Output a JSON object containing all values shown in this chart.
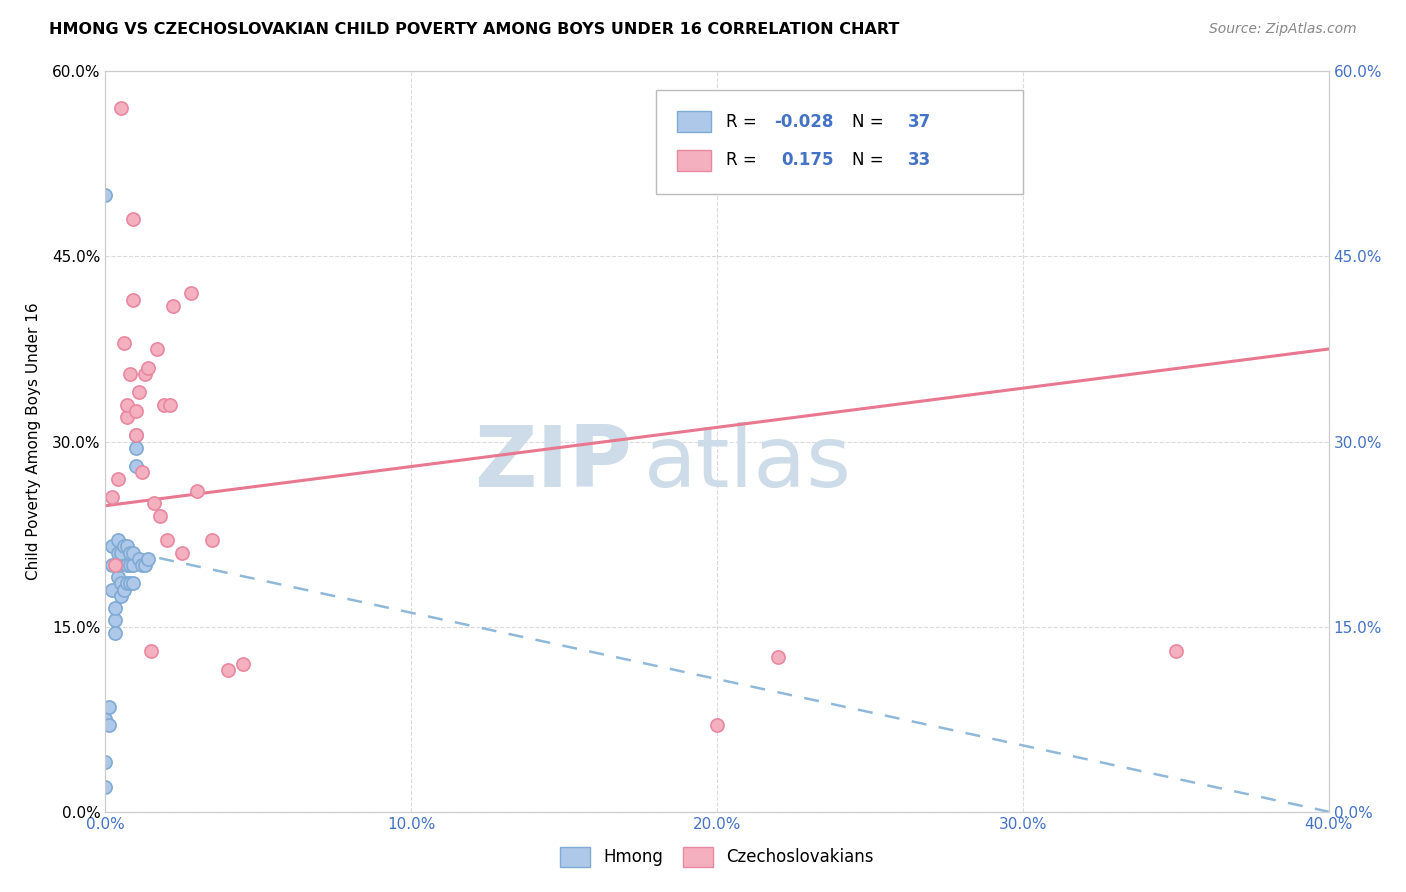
{
  "title": "HMONG VS CZECHOSLOVAKIAN CHILD POVERTY AMONG BOYS UNDER 16 CORRELATION CHART",
  "source": "Source: ZipAtlas.com",
  "ylabel": "Child Poverty Among Boys Under 16",
  "hmong_R": "-0.028",
  "hmong_N": "37",
  "czech_R": "0.175",
  "czech_N": "33",
  "hmong_color": "#adc8e8",
  "hmong_edge_color": "#80aad4",
  "czech_color": "#f5b0c0",
  "czech_edge_color": "#e888a0",
  "hmong_line_color": "#90b8d8",
  "czech_line_color": "#e87890",
  "label_color": "#4472c4",
  "watermark_color": "#cddce8",
  "background_color": "#ffffff",
  "grid_color": "#d8d8d8",
  "hmong_x": [
    0.0,
    0.0,
    0.0,
    0.0,
    0.001,
    0.001,
    0.002,
    0.002,
    0.002,
    0.003,
    0.003,
    0.003,
    0.004,
    0.004,
    0.004,
    0.004,
    0.005,
    0.005,
    0.005,
    0.006,
    0.006,
    0.007,
    0.007,
    0.007,
    0.008,
    0.008,
    0.008,
    0.009,
    0.009,
    0.009,
    0.01,
    0.01,
    0.01,
    0.011,
    0.012,
    0.013,
    0.014
  ],
  "hmong_y": [
    0.02,
    0.04,
    0.075,
    0.5,
    0.07,
    0.085,
    0.18,
    0.2,
    0.215,
    0.145,
    0.155,
    0.165,
    0.19,
    0.2,
    0.21,
    0.22,
    0.175,
    0.185,
    0.21,
    0.18,
    0.215,
    0.185,
    0.2,
    0.215,
    0.185,
    0.2,
    0.21,
    0.185,
    0.2,
    0.21,
    0.28,
    0.295,
    0.305,
    0.205,
    0.2,
    0.2,
    0.205
  ],
  "czech_x": [
    0.002,
    0.003,
    0.004,
    0.005,
    0.006,
    0.007,
    0.007,
    0.008,
    0.009,
    0.009,
    0.01,
    0.01,
    0.011,
    0.012,
    0.013,
    0.014,
    0.015,
    0.016,
    0.017,
    0.018,
    0.019,
    0.02,
    0.021,
    0.022,
    0.025,
    0.028,
    0.03,
    0.035,
    0.04,
    0.045,
    0.2,
    0.22,
    0.35
  ],
  "czech_y": [
    0.255,
    0.2,
    0.27,
    0.57,
    0.38,
    0.32,
    0.33,
    0.355,
    0.415,
    0.48,
    0.305,
    0.325,
    0.34,
    0.275,
    0.355,
    0.36,
    0.13,
    0.25,
    0.375,
    0.24,
    0.33,
    0.22,
    0.33,
    0.41,
    0.21,
    0.42,
    0.26,
    0.22,
    0.115,
    0.12,
    0.07,
    0.125,
    0.13
  ],
  "x_ticks": [
    0.0,
    0.1,
    0.2,
    0.3,
    0.4
  ],
  "y_ticks": [
    0.0,
    0.15,
    0.3,
    0.45,
    0.6
  ],
  "xlim": [
    0.0,
    0.4
  ],
  "ylim": [
    0.0,
    0.6
  ],
  "hmong_line_x0": 0.0,
  "hmong_line_y0": 0.215,
  "hmong_line_x1": 0.4,
  "hmong_line_y1": 0.0,
  "czech_line_x0": 0.0,
  "czech_line_y0": 0.248,
  "czech_line_x1": 0.4,
  "czech_line_y1": 0.375
}
